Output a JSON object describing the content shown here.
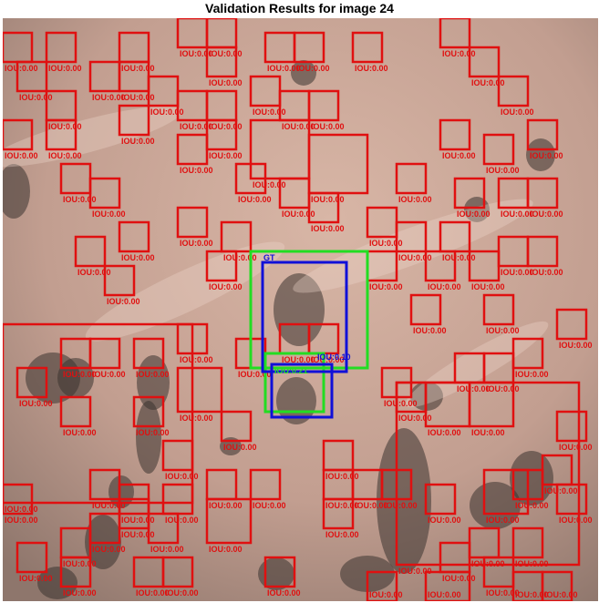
{
  "title": "Validation Results for image 24",
  "legend_labels": {
    "gt": "GT",
    "iou_prefix": "IOU:"
  },
  "colors": {
    "pred_box": "#e01010",
    "gt_box": "#1010d8",
    "match_box": "#22dd22",
    "terrain_base": "#c8a598"
  },
  "detections": {
    "gt_count": 2,
    "iou_values": [
      0.0,
      0.1,
      0.21
    ]
  }
}
